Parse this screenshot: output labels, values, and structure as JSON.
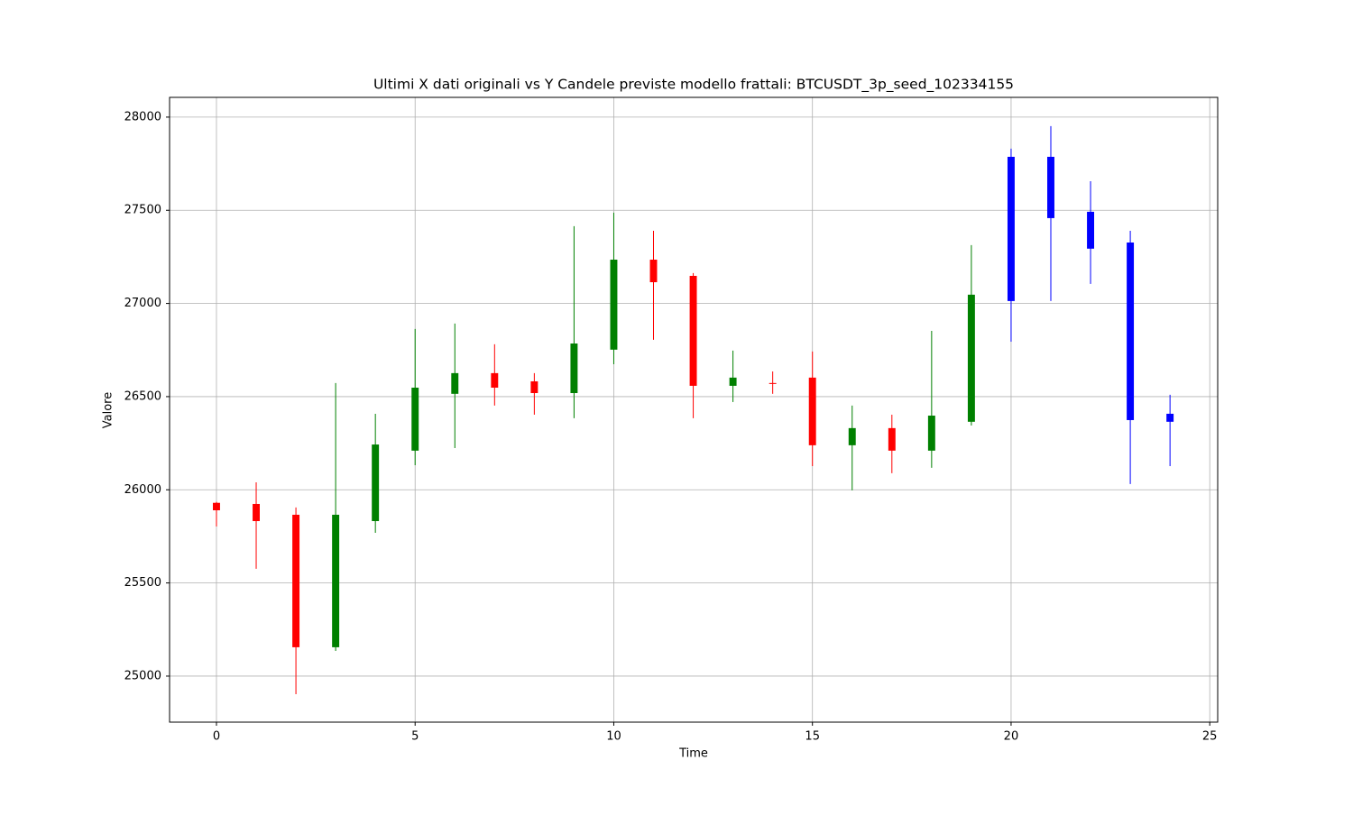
{
  "chart_data": {
    "type": "candlestick",
    "title": "Ultimi X dati originali vs Y Candele previste modello frattali: BTCUSDT_3p_seed_102334155",
    "xlabel": "Time",
    "ylabel": "Valore",
    "xlim": [
      -1.18,
      25.2
    ],
    "ylim": [
      24753,
      28106
    ],
    "xticks": [
      0,
      5,
      10,
      15,
      20,
      25
    ],
    "yticks": [
      25000,
      25500,
      26000,
      26500,
      27000,
      27500,
      28000
    ],
    "grid": true,
    "series": [
      {
        "up_color": "green",
        "down_color": "red",
        "x": [
          0,
          1,
          2,
          3,
          4,
          5,
          6,
          7,
          8,
          9,
          10,
          11,
          12,
          13,
          14,
          15,
          16,
          17,
          18,
          19
        ],
        "open": [
          25930,
          25924,
          25866,
          25155,
          25832,
          26210,
          26515,
          26626,
          26582,
          26519,
          26752,
          27235,
          27148,
          26558,
          26573,
          26602,
          26239,
          26331,
          26210,
          26365
        ],
        "high": [
          25935,
          26040,
          25905,
          26573,
          26408,
          26863,
          26892,
          26781,
          26626,
          27415,
          27487,
          27390,
          27163,
          26747,
          26635,
          26742,
          26452,
          26403,
          26853,
          27313
        ],
        "low": [
          25803,
          25576,
          24903,
          25135,
          25769,
          26132,
          26224,
          26452,
          26403,
          26384,
          26674,
          26805,
          26384,
          26471,
          26515,
          26127,
          25997,
          26089,
          26118,
          26345
        ],
        "close": [
          25890,
          25832,
          25155,
          25866,
          26243,
          26548,
          26626,
          26548,
          26519,
          26785,
          27235,
          27114,
          26558,
          26602,
          26568,
          26239,
          26331,
          26210,
          26398,
          27047
        ]
      },
      {
        "color": "blue",
        "x": [
          20,
          21,
          22,
          23,
          24
        ],
        "open": [
          27013,
          27787,
          27492,
          27327,
          26408
        ],
        "high": [
          27831,
          27952,
          27656,
          27390,
          26510
        ],
        "low": [
          26795,
          27013,
          27105,
          26031,
          26127
        ],
        "close": [
          27787,
          27458,
          27294,
          26374,
          26365
        ]
      }
    ]
  }
}
